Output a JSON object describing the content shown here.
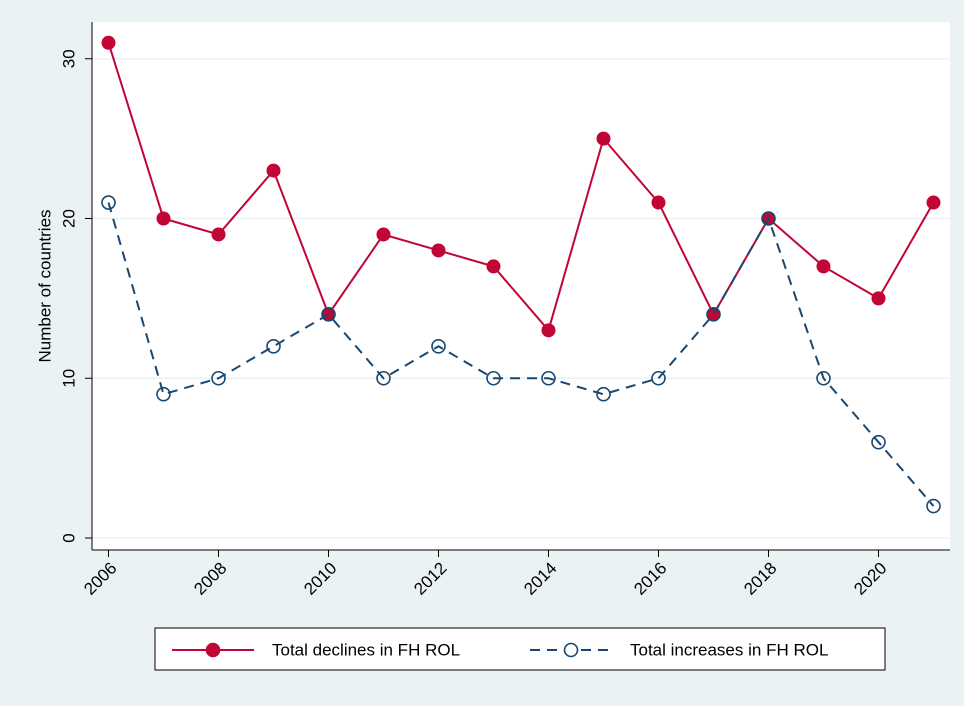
{
  "chart_data": {
    "type": "line",
    "y_label": "Number of countries",
    "x": [
      2006,
      2007,
      2008,
      2009,
      2010,
      2011,
      2012,
      2013,
      2014,
      2015,
      2016,
      2017,
      2018,
      2019,
      2020,
      2021
    ],
    "series": [
      {
        "name": "Total declines in FH ROL",
        "color": "#c10534",
        "dash": "solid",
        "marker": "filled",
        "values": [
          31,
          20,
          19,
          23,
          14,
          19,
          18,
          17,
          13,
          25,
          21,
          14,
          20,
          17,
          15,
          21
        ]
      },
      {
        "name": "Total increases in FH ROL",
        "color": "#1a476f",
        "dash": "dashed",
        "marker": "hollow",
        "values": [
          21,
          9,
          10,
          12,
          14,
          10,
          12,
          10,
          10,
          9,
          10,
          14,
          20,
          10,
          6,
          2
        ]
      }
    ],
    "xlim": [
      2005.7,
      2021.3
    ],
    "xticks": [
      2006,
      2008,
      2010,
      2012,
      2014,
      2016,
      2018,
      2020
    ],
    "ylim": [
      -0.75,
      32.3
    ],
    "yticks": [
      0,
      10,
      20,
      30
    ],
    "grid": true,
    "legend": "bottom"
  }
}
